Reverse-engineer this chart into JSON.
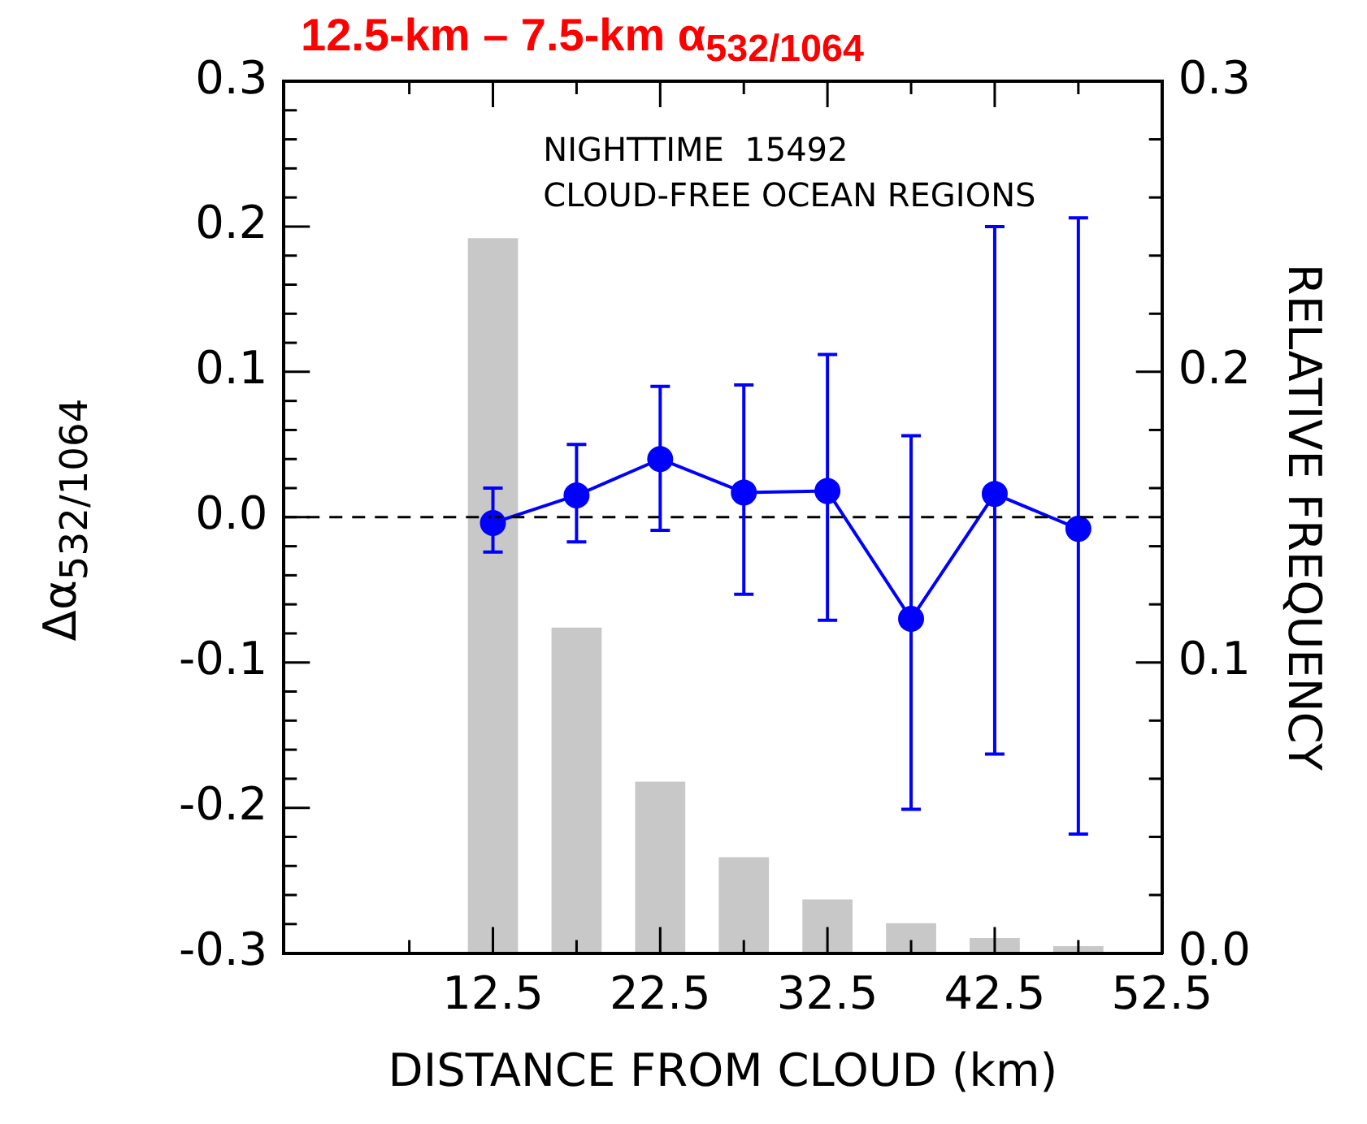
{
  "chart_data": {
    "type": "line",
    "title": "12.5-km – 7.5-km α$_{532/1064}$",
    "xlabel": "DISTANCE FROM CLOUD (km)",
    "ylabel": "Δα$_{532/1064}$",
    "y2label": "RELATIVE FREQUENCY",
    "annotations": [
      "NIGHTTIME  15492",
      "CLOUD-FREE OCEAN REGIONS"
    ],
    "x": [
      12.5,
      17.5,
      22.5,
      27.5,
      32.5,
      37.5,
      42.5,
      47.5
    ],
    "series": [
      {
        "type": "bar",
        "axis": "y2",
        "color": "#c8c8c8",
        "values": [
          0.246,
          0.112,
          0.059,
          0.033,
          0.0185,
          0.0103,
          0.0052,
          0.0024
        ]
      },
      {
        "color": "#0000ff",
        "values": [
          -0.004,
          0.015,
          0.04,
          0.017,
          0.018,
          -0.07,
          0.016,
          -0.008
        ],
        "errors": [
          [
            -0.024,
            0.02
          ],
          [
            -0.017,
            0.05
          ],
          [
            -0.009,
            0.09
          ],
          [
            -0.053,
            0.091
          ],
          [
            -0.071,
            0.112
          ],
          [
            -0.201,
            0.056
          ],
          [
            -0.163,
            0.2
          ],
          [
            -0.218,
            0.206
          ]
        ]
      }
    ],
    "xlim": [
      0,
      52.5
    ],
    "xticks": [
      {
        "value": 7.5,
        "label": null
      },
      12.5,
      {
        "value": 17.5,
        "label": null
      },
      22.5,
      {
        "value": 27.5,
        "label": null
      },
      32.5,
      {
        "value": 37.5,
        "label": null
      },
      42.5,
      {
        "value": 47.5,
        "label": null
      },
      52.5
    ],
    "ylim": [
      -0.3,
      0.3
    ],
    "yticks": [
      {
        "value": -0.3,
        "label": "-0.3"
      },
      {
        "value": -0.28,
        "label": null
      },
      {
        "value": -0.26,
        "label": null
      },
      {
        "value": -0.24,
        "label": null
      },
      {
        "value": -0.22,
        "label": null
      },
      {
        "value": -0.2,
        "label": "-0.2"
      },
      {
        "value": -0.18,
        "label": null
      },
      {
        "value": -0.16,
        "label": null
      },
      {
        "value": -0.14,
        "label": null
      },
      {
        "value": -0.12,
        "label": null
      },
      {
        "value": -0.1,
        "label": "-0.1"
      },
      {
        "value": -0.08,
        "label": null
      },
      {
        "value": -0.06,
        "label": null
      },
      {
        "value": -0.04,
        "label": null
      },
      {
        "value": -0.02,
        "label": null
      },
      {
        "value": 0,
        "label": "0.0"
      },
      {
        "value": 0.02,
        "label": null
      },
      {
        "value": 0.04,
        "label": null
      },
      {
        "value": 0.06,
        "label": null
      },
      {
        "value": 0.08,
        "label": null
      },
      {
        "value": 0.1,
        "label": "0.1"
      },
      {
        "value": 0.12,
        "label": null
      },
      {
        "value": 0.14,
        "label": null
      },
      {
        "value": 0.16,
        "label": null
      },
      {
        "value": 0.18,
        "label": null
      },
      {
        "value": 0.2,
        "label": "0.2"
      },
      {
        "value": 0.22,
        "label": null
      },
      {
        "value": 0.24,
        "label": null
      },
      {
        "value": 0.26,
        "label": null
      },
      {
        "value": 0.28,
        "label": null
      },
      {
        "value": 0.3,
        "label": "0.3"
      }
    ],
    "y2lim": [
      0,
      0.3
    ],
    "y2ticks": [
      {
        "value": 0,
        "label": "0.0"
      },
      {
        "value": 0.02,
        "label": null
      },
      {
        "value": 0.04,
        "label": null
      },
      {
        "value": 0.06,
        "label": null
      },
      {
        "value": 0.08,
        "label": null
      },
      {
        "value": 0.1,
        "label": "0.1"
      },
      {
        "value": 0.12,
        "label": null
      },
      {
        "value": 0.14,
        "label": null
      },
      {
        "value": 0.16,
        "label": null
      },
      {
        "value": 0.18,
        "label": null
      },
      {
        "value": 0.2,
        "label": "0.2"
      },
      {
        "value": 0.22,
        "label": null
      },
      {
        "value": 0.24,
        "label": null
      },
      {
        "value": 0.26,
        "label": null
      },
      {
        "value": 0.28,
        "label": null
      },
      {
        "value": 0.3,
        "label": "0.3"
      }
    ],
    "ref_lines": [
      {
        "axis": "y",
        "value": 0,
        "color": "#000000",
        "line_style": "dashed"
      }
    ],
    "grid": false,
    "marker": "circle",
    "line_style": "solid"
  }
}
